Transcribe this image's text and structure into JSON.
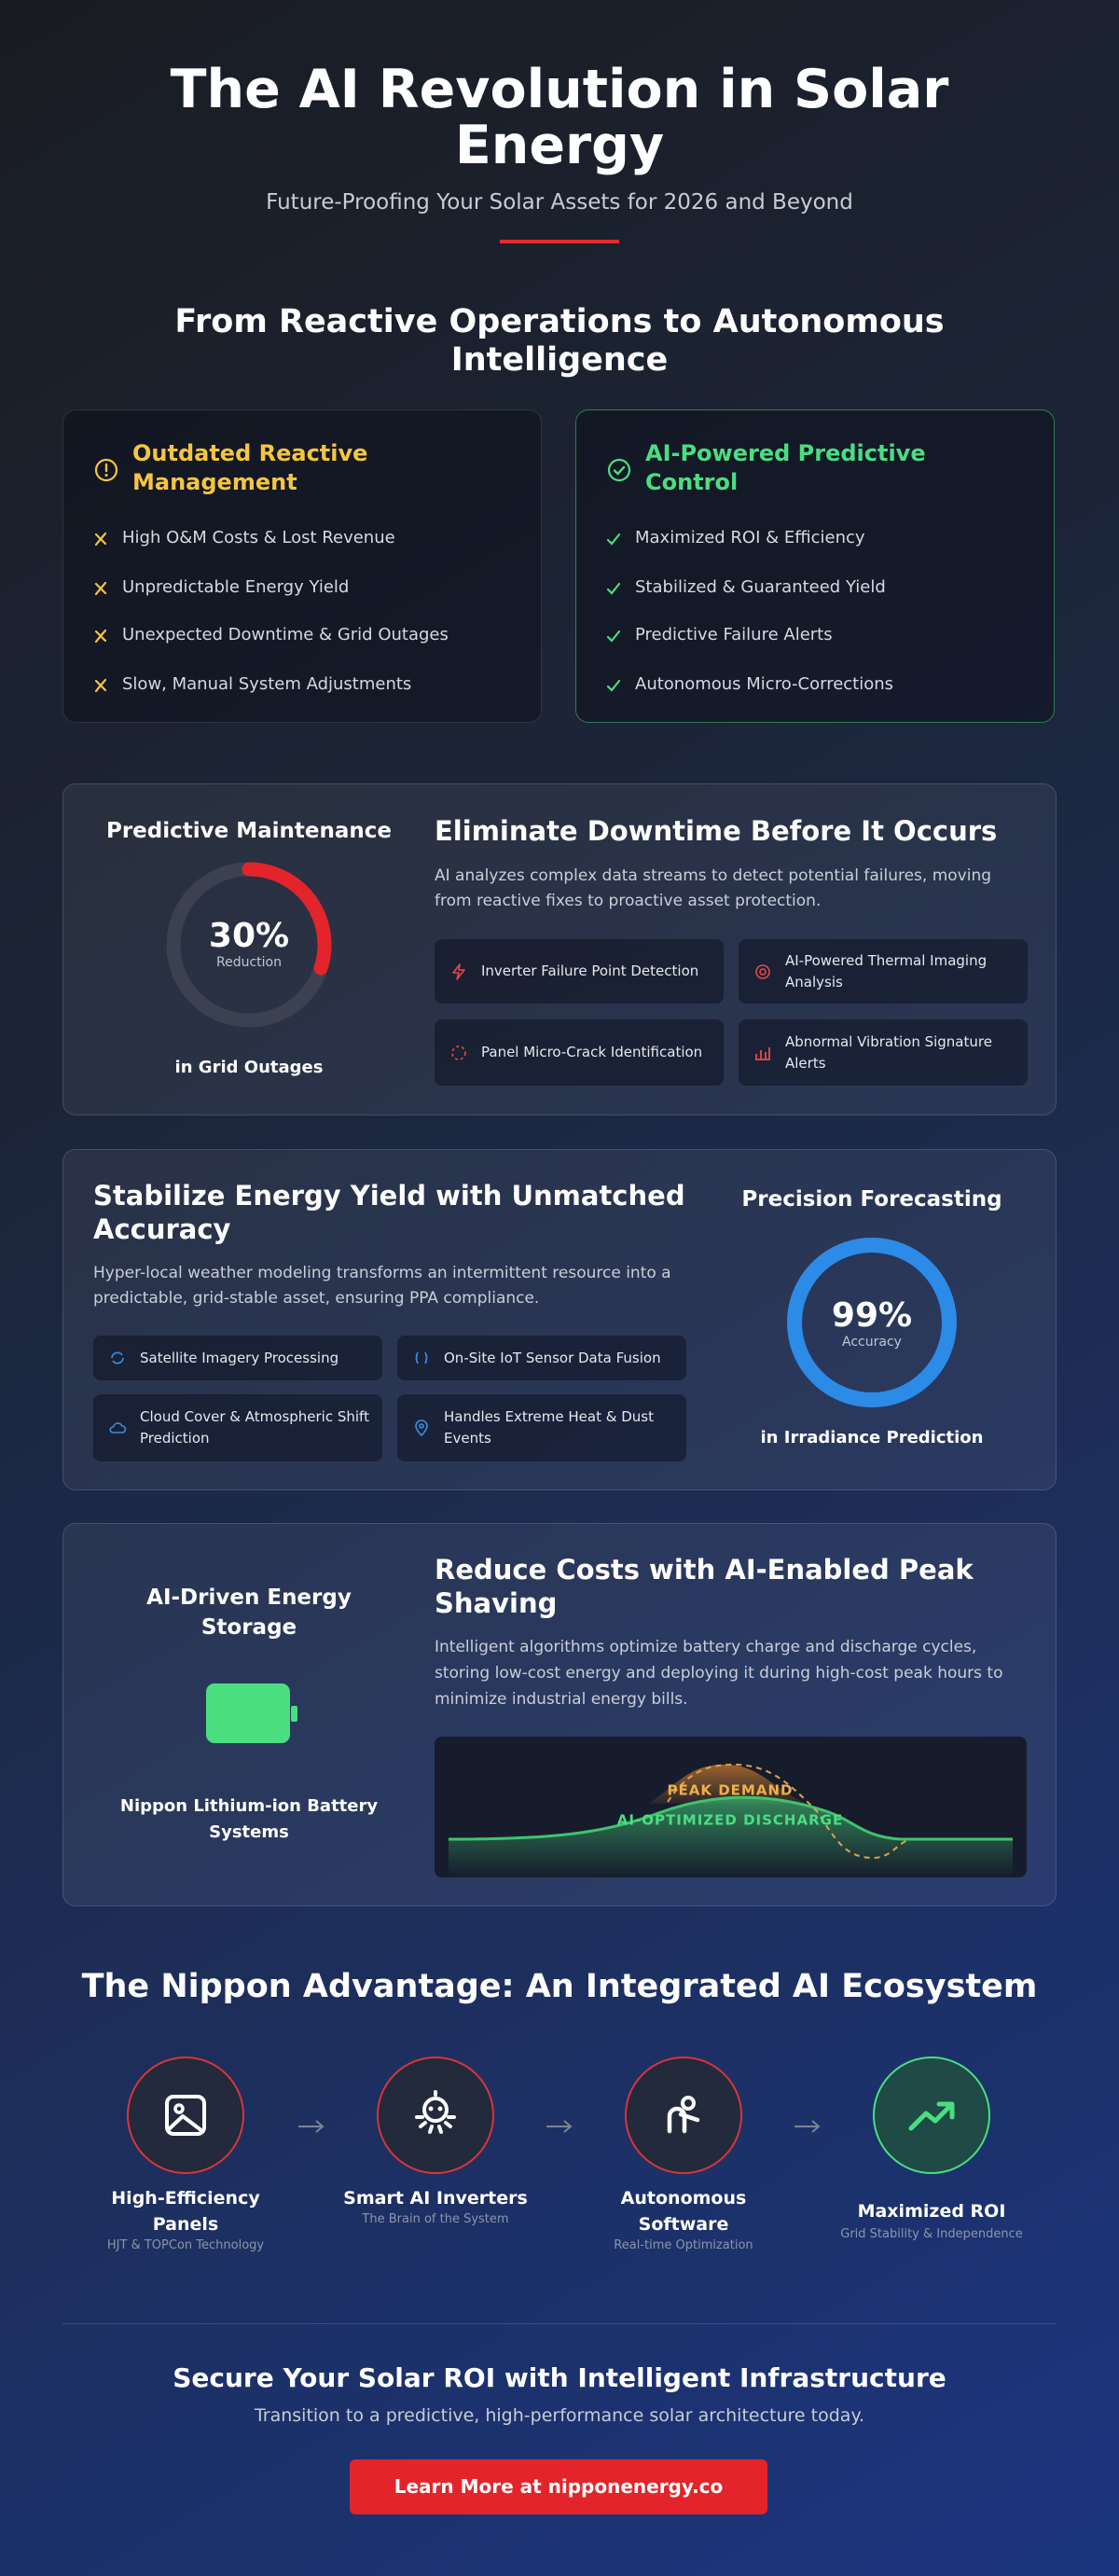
{
  "header": {
    "title": "The AI Revolution in Solar Energy",
    "subtitle": "Future-Proofing Your Solar Assets for 2026 and Beyond"
  },
  "comparison": {
    "title": "From Reactive Operations to Autonomous Intelligence",
    "reactive": {
      "title": "Outdated Reactive Management",
      "items": [
        "High O&M Costs & Lost Revenue",
        "Unpredictable Energy Yield",
        "Unexpected Downtime & Grid Outages",
        "Slow, Manual System Adjustments"
      ]
    },
    "predictive": {
      "title": "AI-Powered Predictive Control",
      "items": [
        "Maximized ROI & Efficiency",
        "Stabilized & Guaranteed Yield",
        "Predictive Failure Alerts",
        "Autonomous Micro-Corrections"
      ]
    }
  },
  "maintenance": {
    "label": "Predictive Maintenance",
    "gauge": {
      "value": 30,
      "label": "30%"
    },
    "gauge_caption": "Reduction",
    "footer": "in Grid Outages",
    "title": "Eliminate Downtime Before It Occurs",
    "description": "AI analyzes complex data streams to detect potential failures, moving from reactive fixes to proactive asset protection.",
    "features": [
      "Inverter Failure Point Detection",
      "AI-Powered Thermal Imaging Analysis",
      "Panel Micro-Crack Identification",
      "Abnormal Vibration Signature Alerts"
    ]
  },
  "forecasting": {
    "title": "Stabilize Energy Yield with Unmatched Accuracy",
    "description": "Hyper-local weather modeling transforms an intermittent resource into a predictable, grid-stable asset, ensuring PPA compliance.",
    "features": [
      "Satellite Imagery Processing",
      "On-Site IoT Sensor Data Fusion",
      "Cloud Cover & Atmospheric Shift Prediction",
      "Handles Extreme Heat & Dust Events"
    ],
    "label": "Precision Forecasting",
    "gauge": {
      "value": 99,
      "label": "99%"
    },
    "gauge_caption": "Accuracy",
    "footer": "in Irradiance Prediction"
  },
  "storage": {
    "label": "AI-Driven Energy Storage",
    "caption": "Nippon Lithium-ion Battery Systems",
    "title": "Reduce Costs with AI-Enabled Peak Shaving",
    "description": "Intelligent algorithms optimize battery charge and discharge cycles, storing low-cost energy and deploying it during high-cost peak hours to minimize industrial energy bills.",
    "chart_labels": [
      "PEAK DEMAND",
      "AI-OPTIMIZED DISCHARGE"
    ]
  },
  "ecosystem": {
    "title": "The Nippon Advantage: An Integrated AI Ecosystem",
    "steps": [
      {
        "title": "High-Efficiency Panels",
        "subtitle": "HJT & TOPCon Technology"
      },
      {
        "title": "Smart AI Inverters",
        "subtitle": "The Brain of the System"
      },
      {
        "title": "Autonomous Software",
        "subtitle": "Real-time Optimization"
      },
      {
        "title": "Maximized ROI",
        "subtitle": "Grid Stability & Independence"
      }
    ]
  },
  "cta": {
    "title": "Secure Your Solar ROI with Intelligent Infrastructure",
    "subtitle": "Transition to a predictive, high-performance solar architecture today.",
    "button": "Learn More at nipponenergy.co"
  }
}
